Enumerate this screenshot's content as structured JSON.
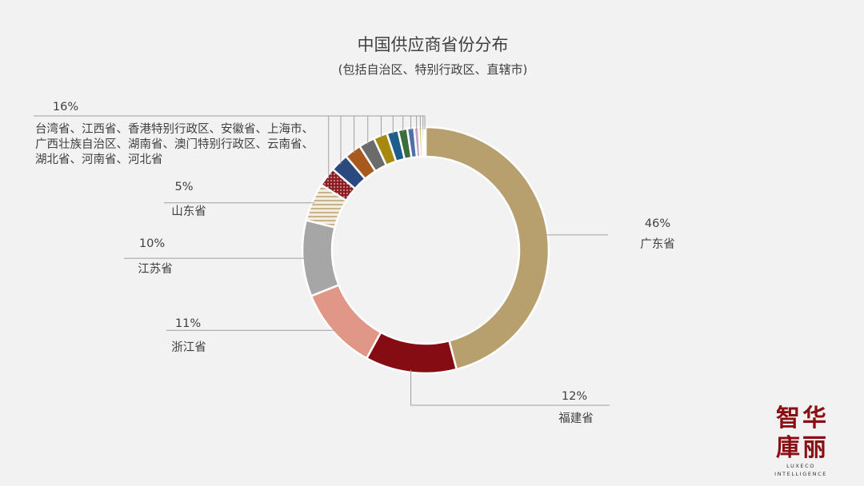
{
  "chart_data": {
    "type": "pie",
    "donut": true,
    "title": "中国供应商省份分布",
    "subtitle": "(包括自治区、特别行政区、直辖市)",
    "slices": [
      {
        "label": "广东省",
        "value": 46,
        "value_label": "46%",
        "color": "#b8a06e"
      },
      {
        "label": "福建省",
        "value": 12,
        "value_label": "12%",
        "color": "#850c12"
      },
      {
        "label": "浙江省",
        "value": 11,
        "value_label": "11%",
        "color": "#e19787"
      },
      {
        "label": "江苏省",
        "value": 10,
        "value_label": "10%",
        "color": "#a6a6a6"
      },
      {
        "label": "山东省",
        "value": 5,
        "value_label": "5%",
        "color": "#c9b38a",
        "pattern": "stripes"
      },
      {
        "label": "台湾省",
        "value": 2.5,
        "color": "#8a1c24",
        "pattern": "dots"
      },
      {
        "label": "江西省",
        "value": 2.4,
        "color": "#2a4a7f"
      },
      {
        "label": "香港特别行政区",
        "value": 2.2,
        "color": "#a85a1e"
      },
      {
        "label": "安徽省",
        "value": 2.1,
        "color": "#6b6b6b"
      },
      {
        "label": "上海市",
        "value": 1.8,
        "color": "#a8890f"
      },
      {
        "label": "广西壮族自治区",
        "value": 1.5,
        "color": "#1e5e8c"
      },
      {
        "label": "湖南省",
        "value": 1.2,
        "color": "#3b6e3b"
      },
      {
        "label": "澳门特别行政区",
        "value": 0.9,
        "color": "#4f6fa8"
      },
      {
        "label": "云南省",
        "value": 0.6,
        "color": "#c9a0c9"
      },
      {
        "label": "湖北省",
        "value": 0.4,
        "color": "#e0c060"
      },
      {
        "label": "河南省",
        "value": 0.3,
        "color": "#8a8a8a"
      },
      {
        "label": "河北省",
        "value": 0.2,
        "color": "#c87850"
      }
    ],
    "group": {
      "value_label": "16%",
      "lines": [
        "台湾省、江西省、香港特别行政区、安徽省、上海市、",
        "广西壮族自治区、湖南省、澳门特别行政区、云南省、",
        "湖北省、河南省、河北省"
      ]
    },
    "legend": "none"
  },
  "logo": {
    "chars": [
      "智",
      "华",
      "庫",
      "丽"
    ],
    "line1": "LUXECO",
    "line2": "INTELLIGENCE"
  }
}
